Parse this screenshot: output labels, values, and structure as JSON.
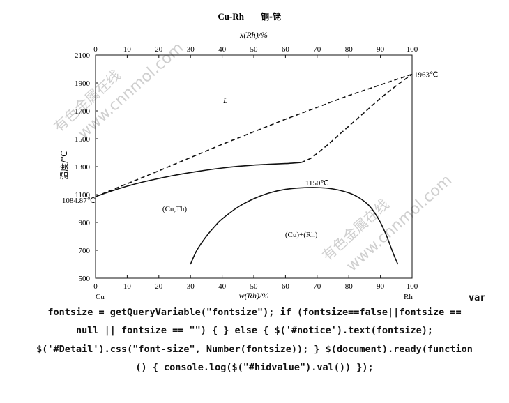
{
  "chart_data": {
    "type": "line",
    "title": "Cu-Rh",
    "subtitle": "铜-铑",
    "x_top_label": "x(Rh)/%",
    "x_bottom_label": "w(Rh)/%",
    "ylabel": "温度/℃",
    "xlim": [
      0,
      100
    ],
    "ylim": [
      500,
      2100
    ],
    "x_ticks": [
      0,
      10,
      20,
      30,
      40,
      50,
      60,
      70,
      80,
      90,
      100
    ],
    "y_ticks": [
      500,
      700,
      900,
      1100,
      1300,
      1500,
      1700,
      1900,
      2100
    ],
    "grid": false,
    "legend": "none",
    "series": [
      {
        "name": "L",
        "style": "dashed",
        "x": [
          0,
          20,
          40,
          60,
          80,
          100
        ],
        "y": [
          1084.87,
          1270,
          1460,
          1640,
          1810,
          1963
        ]
      },
      {
        "style": "solid",
        "x": [
          0,
          5,
          10,
          15,
          20,
          25,
          30,
          35,
          40,
          45,
          50,
          55,
          60,
          65
        ],
        "y": [
          1084.87,
          1125,
          1160,
          1190,
          1215,
          1238,
          1258,
          1275,
          1290,
          1302,
          1311,
          1317,
          1322,
          1330
        ]
      },
      {
        "style": "dashed",
        "x": [
          65,
          68,
          70,
          73,
          76,
          80,
          85,
          90,
          95,
          100
        ],
        "y": [
          1330,
          1360,
          1395,
          1450,
          1510,
          1590,
          1690,
          1790,
          1880,
          1963
        ]
      },
      {
        "style": "solid",
        "x": [
          30,
          32,
          35,
          38,
          40,
          45,
          50,
          55,
          60,
          65,
          70,
          75,
          80,
          83,
          86,
          88,
          90,
          92,
          94,
          95.5
        ],
        "y": [
          600,
          700,
          800,
          880,
          925,
          1010,
          1070,
          1112,
          1137,
          1148,
          1150,
          1140,
          1112,
          1080,
          1030,
          975,
          900,
          800,
          680,
          600
        ]
      }
    ],
    "annotations": [
      {
        "text": "1963℃",
        "x": 100,
        "y": 1963
      },
      {
        "text": "1084.87℃",
        "x": 0,
        "y": 1084.87
      },
      {
        "text": "L",
        "x": 41,
        "y": 1755
      },
      {
        "text": "1150℃",
        "x": 70,
        "y": 1150
      },
      {
        "text": "(Cu,Th)",
        "x": 25,
        "y": 980
      },
      {
        "text": "(Cu)+(Rh)",
        "x": 65,
        "y": 795
      },
      {
        "text": "Cu",
        "x": 0,
        "y": 500
      },
      {
        "text": "Rh",
        "x": 100,
        "y": 500
      }
    ]
  },
  "watermarks": [
    "有色金属在线",
    "www.cnnmol.com"
  ],
  "code": {
    "tail": "var",
    "lines": [
      "fontsize = getQueryVariable(\"fontsize\"); if (fontsize==false||fontsize ==",
      "null || fontsize == \"\") { } else { $('#notice').text(fontsize);",
      "$('#Detail').css(\"font-size\", Number(fontsize)); } $(document).ready(function",
      "() { console.log($(\"#hidvalue\").val()) });"
    ]
  }
}
